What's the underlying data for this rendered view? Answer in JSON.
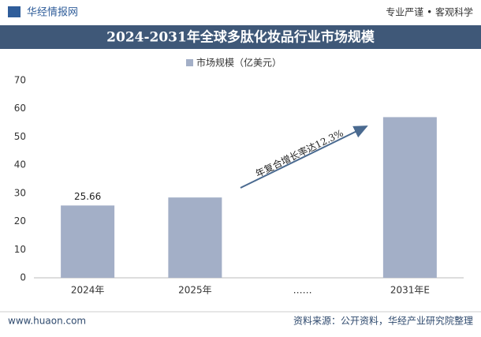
{
  "header": {
    "brand": "华经情报网",
    "slogan": "专业严谨 • 客观科学"
  },
  "chart_data": {
    "type": "bar",
    "title": "2024-2031年全球多肽化妆品行业市场规模",
    "categories": [
      "2024年",
      "2025年",
      "……",
      "2031年E"
    ],
    "series": [
      {
        "name": "市场规模（亿美元）",
        "color": "#a3afc7",
        "values": [
          25.66,
          28.5,
          null,
          57
        ],
        "value_labels": [
          "25.66",
          null,
          null,
          null
        ]
      }
    ],
    "ylim": [
      0,
      70
    ],
    "yticks": [
      0,
      10,
      20,
      30,
      40,
      50,
      60,
      70
    ],
    "grid": false,
    "annotation": "年复合增长率达12.3%",
    "legend": "top"
  },
  "footer": {
    "website": "www.huaon.com",
    "source": "资料来源：公开资料，华经产业研究院整理"
  }
}
